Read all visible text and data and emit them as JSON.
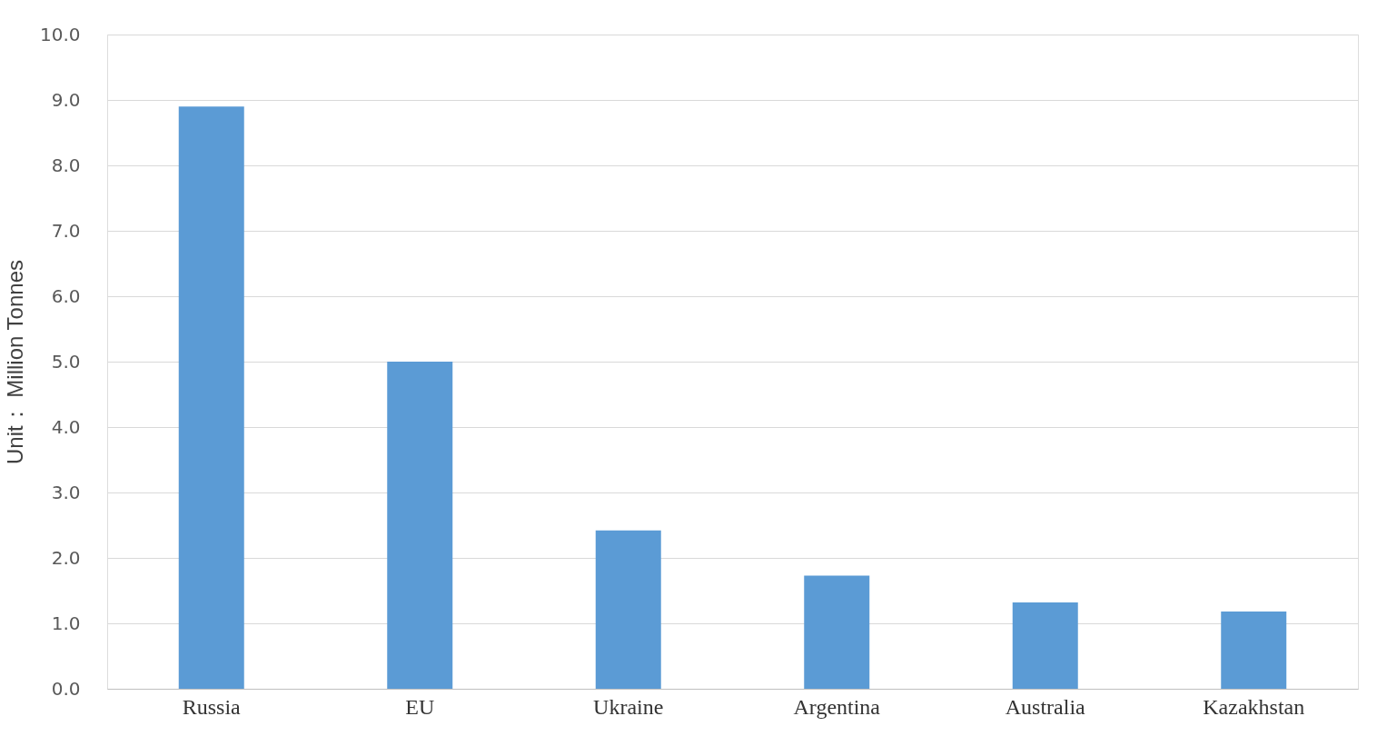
{
  "chart_data": {
    "type": "bar",
    "ylabel": "Unit： Million Tonnes",
    "categories": [
      "Russia",
      "EU",
      "Ukraine",
      "Argentina",
      "Australia",
      "Kazakhstan"
    ],
    "values": [
      8.9,
      5.0,
      2.42,
      1.73,
      1.32,
      1.18
    ],
    "color": "#5b9bd5",
    "ylim": [
      0,
      10
    ],
    "yticks": [
      {
        "value": 0,
        "label": "0.0"
      },
      {
        "value": 1,
        "label": "1.0"
      },
      {
        "value": 2,
        "label": "2.0"
      },
      {
        "value": 3,
        "label": "3.0"
      },
      {
        "value": 4,
        "label": "4.0"
      },
      {
        "value": 5,
        "label": "5.0"
      },
      {
        "value": 6,
        "label": "6.0"
      },
      {
        "value": 7,
        "label": "7.0"
      },
      {
        "value": 8,
        "label": "8.0"
      },
      {
        "value": 9,
        "label": "9.0"
      },
      {
        "value": 10,
        "label": "10.0"
      }
    ],
    "grid": "y"
  }
}
